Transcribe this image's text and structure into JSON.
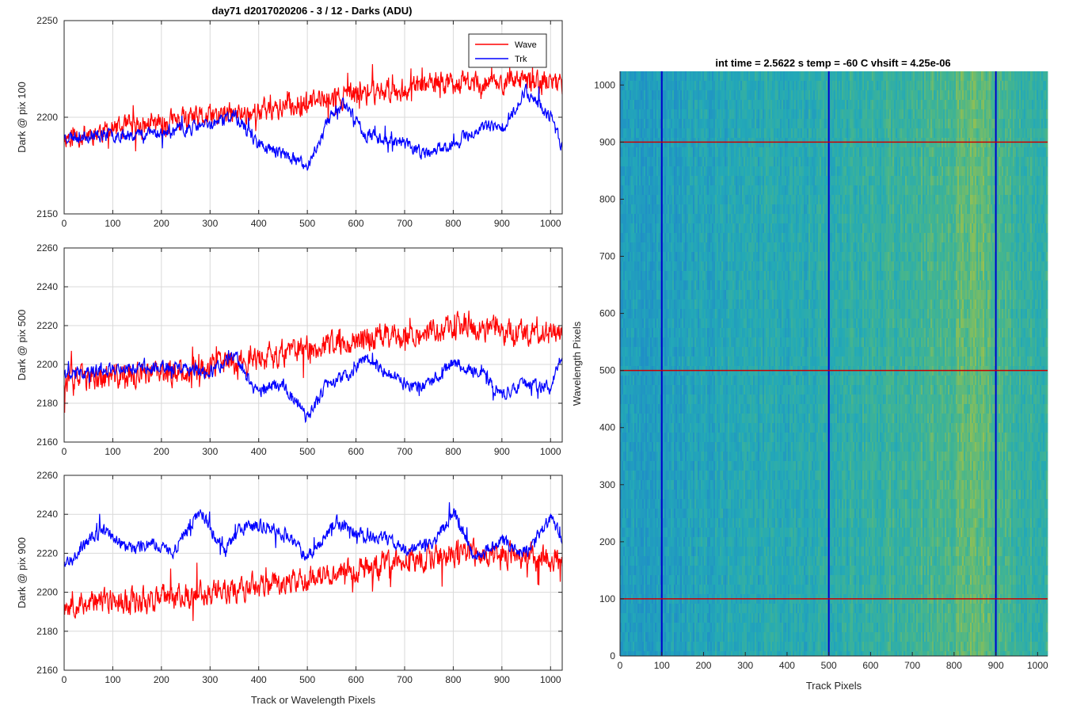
{
  "chart_data": [
    {
      "type": "line",
      "title": "day71 d2017020206 - 3 / 12 - Darks (ADU)",
      "xlabel": "",
      "ylabel": "Dark @ pix 100",
      "xlim": [
        0,
        1024
      ],
      "ylim": [
        2150,
        2250
      ],
      "xticks": [
        0,
        100,
        200,
        300,
        400,
        500,
        600,
        700,
        800,
        900,
        1000
      ],
      "yticks": [
        2150,
        2200,
        2250
      ],
      "grid": true,
      "legend": {
        "placement": "top-right",
        "entries": [
          "Wave",
          "Trk"
        ]
      },
      "series": [
        {
          "name": "Wave",
          "color": "#ff0000",
          "trend_x": [
            0,
            200,
            400,
            600,
            800,
            1024
          ],
          "trend_y": [
            2190,
            2197,
            2203,
            2212,
            2218,
            2218
          ],
          "noise_amplitude": 9,
          "seed": 11
        },
        {
          "name": "Trk",
          "color": "#0000ff",
          "trend_x": [
            0,
            100,
            200,
            300,
            350,
            400,
            450,
            500,
            540,
            575,
            620,
            700,
            740,
            800,
            860,
            900,
            950,
            1000,
            1024
          ],
          "trend_y": [
            2190,
            2191,
            2192,
            2196,
            2201,
            2186,
            2181,
            2174,
            2197,
            2208,
            2191,
            2187,
            2181,
            2186,
            2195,
            2194,
            2214,
            2200,
            2185
          ],
          "noise_amplitude": 5,
          "seed": 23
        }
      ]
    },
    {
      "type": "line",
      "title": "",
      "xlabel": "",
      "ylabel": "Dark @ pix 500",
      "xlim": [
        0,
        1024
      ],
      "ylim": [
        2160,
        2260
      ],
      "xticks": [
        0,
        100,
        200,
        300,
        400,
        500,
        600,
        700,
        800,
        900,
        1000
      ],
      "yticks": [
        2160,
        2180,
        2200,
        2220,
        2240,
        2260
      ],
      "grid": true,
      "series": [
        {
          "name": "Wave",
          "color": "#ff0000",
          "trend_x": [
            0,
            200,
            400,
            600,
            800,
            1024
          ],
          "trend_y": [
            2192,
            2195,
            2203,
            2213,
            2219,
            2216
          ],
          "noise_amplitude": 10,
          "seed": 37
        },
        {
          "name": "Trk",
          "color": "#0000ff",
          "trend_x": [
            0,
            100,
            200,
            300,
            350,
            400,
            450,
            500,
            540,
            575,
            620,
            700,
            740,
            800,
            860,
            900,
            950,
            1000,
            1024
          ],
          "trend_y": [
            2195,
            2198,
            2199,
            2196,
            2204,
            2186,
            2190,
            2172,
            2190,
            2193,
            2203,
            2190,
            2188,
            2201,
            2195,
            2184,
            2190,
            2188,
            2205
          ],
          "noise_amplitude": 5,
          "seed": 41
        }
      ]
    },
    {
      "type": "line",
      "title": "",
      "xlabel": "Track or Wavelength Pixels",
      "ylabel": "Dark @ pix 900",
      "xlim": [
        0,
        1024
      ],
      "ylim": [
        2160,
        2260
      ],
      "xticks": [
        0,
        100,
        200,
        300,
        400,
        500,
        600,
        700,
        800,
        900,
        1000
      ],
      "yticks": [
        2160,
        2180,
        2200,
        2220,
        2240,
        2260
      ],
      "grid": true,
      "series": [
        {
          "name": "Wave",
          "color": "#ff0000",
          "trend_x": [
            0,
            200,
            400,
            600,
            800,
            1024
          ],
          "trend_y": [
            2194,
            2197,
            2203,
            2211,
            2220,
            2217
          ],
          "noise_amplitude": 10,
          "seed": 53
        },
        {
          "name": "Trk",
          "color": "#0000ff",
          "trend_x": [
            0,
            40,
            80,
            130,
            180,
            220,
            280,
            330,
            360,
            420,
            470,
            500,
            560,
            620,
            660,
            700,
            760,
            800,
            840,
            900,
            950,
            1000,
            1024
          ],
          "trend_y": [
            2215,
            2224,
            2233,
            2222,
            2226,
            2220,
            2242,
            2220,
            2232,
            2235,
            2227,
            2218,
            2236,
            2229,
            2228,
            2222,
            2225,
            2242,
            2219,
            2226,
            2220,
            2238,
            2228
          ],
          "noise_amplitude": 5,
          "seed": 67
        }
      ]
    },
    {
      "type": "heatmap",
      "title": "int time = 2.5622 s    temp = -60 C    vhsift = 4.25e-06",
      "xlabel": "Track Pixels",
      "ylabel": "Wavelength Pixels",
      "xlim": [
        0,
        1024
      ],
      "ylim": [
        0,
        1024
      ],
      "xticks": [
        0,
        100,
        200,
        300,
        400,
        500,
        600,
        700,
        800,
        900,
        1000
      ],
      "yticks": [
        0,
        100,
        200,
        300,
        400,
        500,
        600,
        700,
        800,
        900,
        1000
      ],
      "colormap": [
        "#1f8fc6",
        "#23a9b7",
        "#44b58f",
        "#8cbf57",
        "#c6bd3d"
      ],
      "column_trend_x": [
        0,
        90,
        200,
        400,
        500,
        650,
        750,
        820,
        860,
        900,
        950,
        1024
      ],
      "column_trend_level": [
        0.12,
        0.12,
        0.22,
        0.27,
        0.32,
        0.4,
        0.46,
        0.58,
        0.64,
        0.5,
        0.42,
        0.38
      ],
      "marker_lines": [
        {
          "orientation": "vertical",
          "value": 100,
          "color": "#0000cc"
        },
        {
          "orientation": "vertical",
          "value": 500,
          "color": "#0000cc"
        },
        {
          "orientation": "vertical",
          "value": 900,
          "color": "#0000cc"
        },
        {
          "orientation": "horizontal",
          "value": 100,
          "color": "#cc0000"
        },
        {
          "orientation": "horizontal",
          "value": 500,
          "color": "#cc0000"
        },
        {
          "orientation": "horizontal",
          "value": 900,
          "color": "#cc0000"
        }
      ]
    }
  ]
}
